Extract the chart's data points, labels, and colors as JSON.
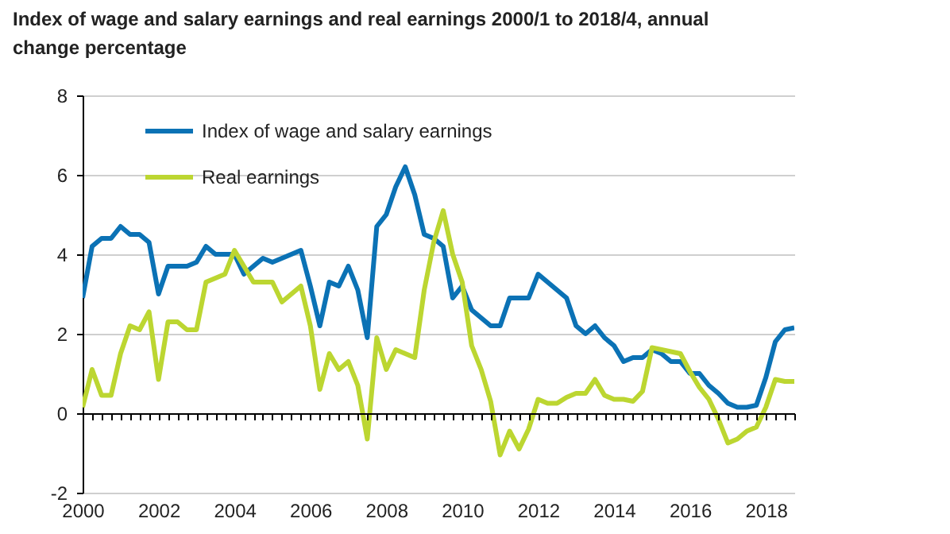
{
  "chart_data": {
    "type": "line",
    "title": "Index of wage and salary earnings and real earnings 2000/1 to 2018/4, annual change percentage",
    "x": [
      2000,
      2000.25,
      2000.5,
      2000.75,
      2001,
      2001.25,
      2001.5,
      2001.75,
      2002,
      2002.25,
      2002.5,
      2002.75,
      2003,
      2003.25,
      2003.5,
      2003.75,
      2004,
      2004.25,
      2004.5,
      2004.75,
      2005,
      2005.25,
      2005.5,
      2005.75,
      2006,
      2006.25,
      2006.5,
      2006.75,
      2007,
      2007.25,
      2007.5,
      2007.75,
      2008,
      2008.25,
      2008.5,
      2008.75,
      2009,
      2009.25,
      2009.5,
      2009.75,
      2010,
      2010.25,
      2010.5,
      2010.75,
      2011,
      2011.25,
      2011.5,
      2011.75,
      2012,
      2012.25,
      2012.5,
      2012.75,
      2013,
      2013.25,
      2013.5,
      2013.75,
      2014,
      2014.25,
      2014.5,
      2014.75,
      2015,
      2015.25,
      2015.5,
      2015.75,
      2016,
      2016.25,
      2016.5,
      2016.75,
      2017,
      2017.25,
      2017.5,
      2017.75,
      2018,
      2018.25,
      2018.5,
      2018.75
    ],
    "series": [
      {
        "name": "Index of wage and salary earnings",
        "color": "#0b72b5",
        "values": [
          2.9,
          4.2,
          4.4,
          4.4,
          4.7,
          4.5,
          4.5,
          4.3,
          3.0,
          3.7,
          3.7,
          3.7,
          3.8,
          4.2,
          4.0,
          4.0,
          4.0,
          3.5,
          3.7,
          3.9,
          3.8,
          3.9,
          4.0,
          4.1,
          3.2,
          2.2,
          3.3,
          3.2,
          3.7,
          3.1,
          1.9,
          4.7,
          5.0,
          5.7,
          6.2,
          5.5,
          4.5,
          4.4,
          4.2,
          2.9,
          3.2,
          2.6,
          2.4,
          2.2,
          2.2,
          2.9,
          2.9,
          2.9,
          3.5,
          3.3,
          3.1,
          2.9,
          2.2,
          2.0,
          2.2,
          1.9,
          1.7,
          1.3,
          1.4,
          1.4,
          1.6,
          1.5,
          1.3,
          1.3,
          1.0,
          1.0,
          0.7,
          0.5,
          0.25,
          0.15,
          0.15,
          0.2,
          0.9,
          1.8,
          2.1,
          2.15
        ]
      },
      {
        "name": "Real earnings",
        "color": "#bcd631",
        "values": [
          0.15,
          1.1,
          0.45,
          0.45,
          1.5,
          2.2,
          2.1,
          2.55,
          0.85,
          2.3,
          2.3,
          2.1,
          2.1,
          3.3,
          3.4,
          3.5,
          4.1,
          3.7,
          3.3,
          3.3,
          3.3,
          2.8,
          3.0,
          3.2,
          2.2,
          0.6,
          1.5,
          1.1,
          1.3,
          0.7,
          -0.65,
          1.9,
          1.1,
          1.6,
          1.5,
          1.4,
          3.1,
          4.3,
          5.1,
          4.0,
          3.3,
          1.7,
          1.1,
          0.3,
          -1.05,
          -0.45,
          -0.9,
          -0.4,
          0.35,
          0.25,
          0.25,
          0.4,
          0.5,
          0.5,
          0.85,
          0.45,
          0.35,
          0.35,
          0.3,
          0.55,
          1.65,
          1.6,
          1.55,
          1.5,
          1.05,
          0.65,
          0.35,
          -0.15,
          -0.75,
          -0.65,
          -0.45,
          -0.35,
          0.15,
          0.85,
          0.8,
          0.8
        ]
      }
    ],
    "xlim": [
      2000,
      2018.75
    ],
    "xticks": [
      2000,
      {
        "value": 2000.25,
        "label": null
      },
      {
        "value": 2000.5,
        "label": null
      },
      {
        "value": 2000.75,
        "label": null
      },
      {
        "value": 2001,
        "label": null
      },
      {
        "value": 2001.25,
        "label": null
      },
      {
        "value": 2001.5,
        "label": null
      },
      {
        "value": 2001.75,
        "label": null
      },
      2002,
      {
        "value": 2002.25,
        "label": null
      },
      {
        "value": 2002.5,
        "label": null
      },
      {
        "value": 2002.75,
        "label": null
      },
      {
        "value": 2003,
        "label": null
      },
      {
        "value": 2003.25,
        "label": null
      },
      {
        "value": 2003.5,
        "label": null
      },
      {
        "value": 2003.75,
        "label": null
      },
      2004,
      {
        "value": 2004.25,
        "label": null
      },
      {
        "value": 2004.5,
        "label": null
      },
      {
        "value": 2004.75,
        "label": null
      },
      {
        "value": 2005,
        "label": null
      },
      {
        "value": 2005.25,
        "label": null
      },
      {
        "value": 2005.5,
        "label": null
      },
      {
        "value": 2005.75,
        "label": null
      },
      2006,
      {
        "value": 2006.25,
        "label": null
      },
      {
        "value": 2006.5,
        "label": null
      },
      {
        "value": 2006.75,
        "label": null
      },
      {
        "value": 2007,
        "label": null
      },
      {
        "value": 2007.25,
        "label": null
      },
      {
        "value": 2007.5,
        "label": null
      },
      {
        "value": 2007.75,
        "label": null
      },
      2008,
      {
        "value": 2008.25,
        "label": null
      },
      {
        "value": 2008.5,
        "label": null
      },
      {
        "value": 2008.75,
        "label": null
      },
      {
        "value": 2009,
        "label": null
      },
      {
        "value": 2009.25,
        "label": null
      },
      {
        "value": 2009.5,
        "label": null
      },
      {
        "value": 2009.75,
        "label": null
      },
      2010,
      {
        "value": 2010.25,
        "label": null
      },
      {
        "value": 2010.5,
        "label": null
      },
      {
        "value": 2010.75,
        "label": null
      },
      {
        "value": 2011,
        "label": null
      },
      {
        "value": 2011.25,
        "label": null
      },
      {
        "value": 2011.5,
        "label": null
      },
      {
        "value": 2011.75,
        "label": null
      },
      2012,
      {
        "value": 2012.25,
        "label": null
      },
      {
        "value": 2012.5,
        "label": null
      },
      {
        "value": 2012.75,
        "label": null
      },
      {
        "value": 2013,
        "label": null
      },
      {
        "value": 2013.25,
        "label": null
      },
      {
        "value": 2013.5,
        "label": null
      },
      {
        "value": 2013.75,
        "label": null
      },
      2014,
      {
        "value": 2014.25,
        "label": null
      },
      {
        "value": 2014.5,
        "label": null
      },
      {
        "value": 2014.75,
        "label": null
      },
      {
        "value": 2015,
        "label": null
      },
      {
        "value": 2015.25,
        "label": null
      },
      {
        "value": 2015.5,
        "label": null
      },
      {
        "value": 2015.75,
        "label": null
      },
      2016,
      {
        "value": 2016.25,
        "label": null
      },
      {
        "value": 2016.5,
        "label": null
      },
      {
        "value": 2016.75,
        "label": null
      },
      {
        "value": 2017,
        "label": null
      },
      {
        "value": 2017.25,
        "label": null
      },
      {
        "value": 2017.5,
        "label": null
      },
      {
        "value": 2017.75,
        "label": null
      },
      2018,
      {
        "value": 2018.25,
        "label": null
      },
      {
        "value": 2018.5,
        "label": null
      },
      {
        "value": 2018.75,
        "label": null
      }
    ],
    "ylim": [
      -2,
      8
    ],
    "yticks": [
      -2,
      0,
      2,
      4,
      6,
      8
    ],
    "grid": "y",
    "legend": "top left",
    "line_style": "solid",
    "marker": "none"
  }
}
